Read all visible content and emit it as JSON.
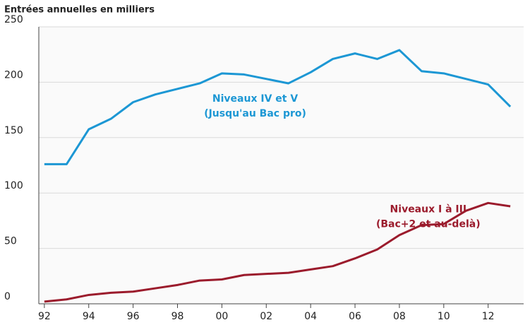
{
  "chart_data": {
    "type": "line",
    "title": "Entrées annuelles en milliers",
    "x": [
      1992,
      1993,
      1994,
      1995,
      1996,
      1997,
      1998,
      1999,
      2000,
      2001,
      2002,
      2003,
      2004,
      2005,
      2006,
      2007,
      2008,
      2009,
      2010,
      2011,
      2012,
      2013
    ],
    "series": [
      {
        "name": "Niveaux IV et V",
        "color": "#1c97d4",
        "values": [
          126,
          126,
          157.5,
          167,
          182,
          189,
          194,
          199,
          208,
          207,
          203,
          199,
          209,
          221,
          226,
          221,
          229,
          210,
          208,
          203,
          198,
          178
        ]
      },
      {
        "name": "Niveaux I à III",
        "color": "#9b1b2c",
        "values": [
          2,
          4,
          8,
          10,
          11,
          14,
          17,
          21,
          22,
          26,
          27,
          28,
          31,
          34,
          41,
          49,
          62,
          71,
          72,
          84,
          91,
          88
        ]
      }
    ],
    "annotations": [
      {
        "lines": [
          "Niveaux IV et V",
          "(Jusqu'au Bac pro)"
        ],
        "x": 2001.5,
        "y": 185,
        "series": 0
      },
      {
        "lines": [
          "Niveaux I à III",
          "(Bac+2 et au-delà)"
        ],
        "x": 2009.3,
        "y": 85,
        "series": 1
      }
    ],
    "xlim": [
      1991.75,
      2013.6
    ],
    "ylim": [
      0,
      250
    ],
    "xticks": [
      {
        "value": 1992,
        "label": "92"
      },
      {
        "value": 1994,
        "label": "94"
      },
      {
        "value": 1996,
        "label": "96"
      },
      {
        "value": 1998,
        "label": "98"
      },
      {
        "value": 2000,
        "label": "00"
      },
      {
        "value": 2002,
        "label": "02"
      },
      {
        "value": 2004,
        "label": "04"
      },
      {
        "value": 2006,
        "label": "06"
      },
      {
        "value": 2008,
        "label": "08"
      },
      {
        "value": 2010,
        "label": "10"
      },
      {
        "value": 2012,
        "label": "12"
      }
    ],
    "yticks": [
      0,
      50,
      100,
      150,
      200,
      250
    ],
    "grid": true
  }
}
